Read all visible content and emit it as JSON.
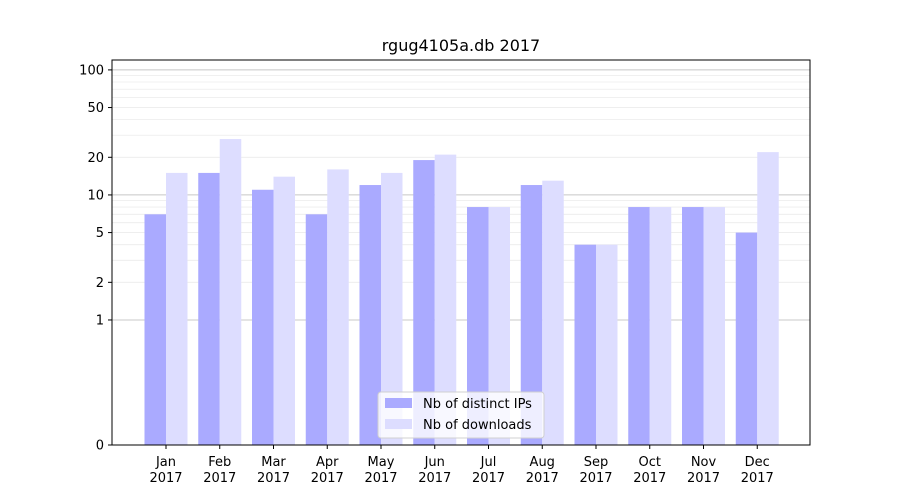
{
  "chart_data": {
    "type": "bar",
    "title": "rgug4105a.db 2017",
    "xlabel": "",
    "ylabel": "",
    "yscale": "symlog",
    "ylim": [
      0,
      120
    ],
    "yticks": [
      0,
      1,
      2,
      5,
      10,
      20,
      50,
      100
    ],
    "grid": "horizontal",
    "legend_position": "bottom-center",
    "categories": [
      "Jan\n2017",
      "Feb\n2017",
      "Mar\n2017",
      "Apr\n2017",
      "May\n2017",
      "Jun\n2017",
      "Jul\n2017",
      "Aug\n2017",
      "Sep\n2017",
      "Oct\n2017",
      "Nov\n2017",
      "Dec\n2017"
    ],
    "series": [
      {
        "name": "Nb of distinct IPs",
        "color": "#aaaaff",
        "values": [
          7,
          15,
          11,
          7,
          12,
          19,
          8,
          12,
          4,
          8,
          8,
          5
        ]
      },
      {
        "name": "Nb of downloads",
        "color": "#ddddff",
        "values": [
          15,
          28,
          14,
          16,
          15,
          21,
          8,
          13,
          4,
          8,
          8,
          22
        ]
      }
    ]
  }
}
